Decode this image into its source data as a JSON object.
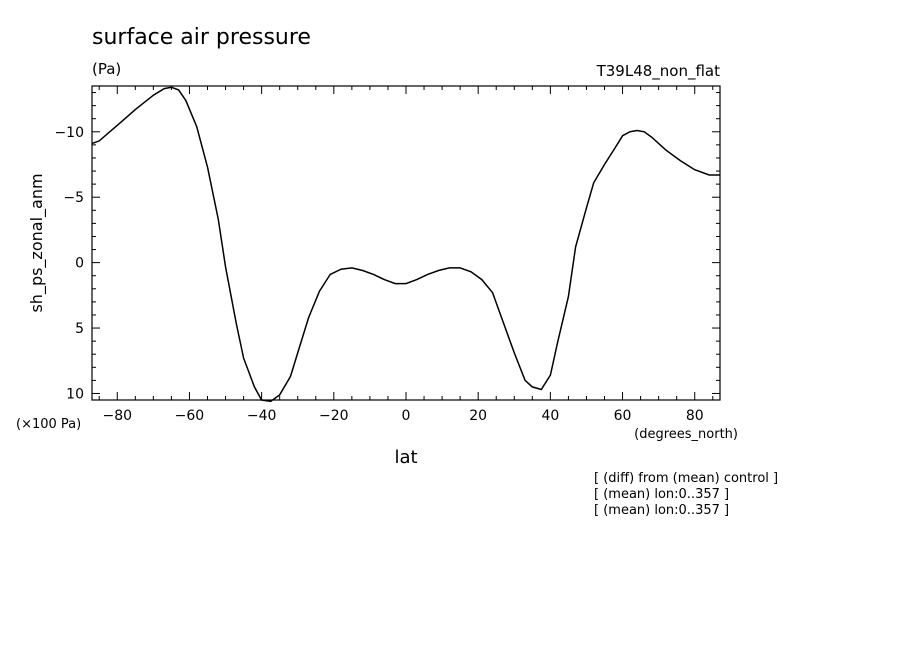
{
  "chart_data": {
    "type": "line",
    "title": "surface air pressure",
    "units_label": "(Pa)",
    "run_label": "T39L48_non_flat",
    "ylabel": "sh_ps_zonal_anm",
    "y_scale_note": "(×100 Pa)",
    "xlabel": "lat",
    "x_units": "(degrees_north)",
    "notes": [
      "[ (diff) from (mean) control ]",
      "[ (mean) lon:0..357 ]",
      "[ (mean) lon:0..357 ]"
    ],
    "xlim": [
      -87,
      87
    ],
    "ylim": [
      10.5,
      -13.5
    ],
    "y_inverted": true,
    "x_ticks": [
      -80,
      -60,
      -40,
      -20,
      0,
      20,
      40,
      60,
      80
    ],
    "x_tick_labels": [
      "−80",
      "−60",
      "−40",
      "−20",
      "0",
      "20",
      "40",
      "60",
      "80"
    ],
    "y_ticks": [
      -10,
      -5,
      0,
      5,
      10
    ],
    "y_tick_labels": [
      "−10",
      "−5",
      "0",
      "5",
      "10"
    ],
    "series": [
      {
        "x": [
          -87,
          -85,
          -80,
          -75,
          -70,
          -67,
          -65,
          -63,
          -61,
          -58,
          -55,
          -52,
          -50,
          -47,
          -45,
          -42,
          -40,
          -37.5,
          -35,
          -32,
          -30,
          -27,
          -24,
          -21,
          -18,
          -15,
          -12,
          -9,
          -6,
          -3,
          0,
          3,
          6,
          9,
          12,
          15,
          18,
          21,
          24,
          27,
          30,
          33,
          35,
          37.5,
          40,
          42,
          45,
          47,
          50,
          52,
          55,
          58,
          60,
          62,
          64,
          66,
          68,
          72,
          76,
          80,
          84,
          87
        ],
        "y": [
          -9.1,
          -9.3,
          -10.5,
          -11.7,
          -12.8,
          -13.3,
          -13.4,
          -13.2,
          -12.4,
          -10.4,
          -7.3,
          -3.3,
          0.3,
          4.7,
          7.3,
          9.5,
          10.5,
          10.6,
          10.1,
          8.7,
          6.9,
          4.2,
          2.2,
          0.9,
          0.5,
          0.4,
          0.6,
          0.9,
          1.3,
          1.6,
          1.6,
          1.3,
          0.9,
          0.6,
          0.4,
          0.4,
          0.7,
          1.3,
          2.3,
          4.6,
          6.9,
          9.0,
          9.5,
          9.7,
          8.6,
          6.1,
          2.6,
          -1.2,
          -4.2,
          -6.1,
          -7.5,
          -8.8,
          -9.7,
          -10.0,
          -10.1,
          -10.0,
          -9.6,
          -8.6,
          -7.8,
          -7.1,
          -6.7,
          -6.7
        ]
      }
    ]
  }
}
